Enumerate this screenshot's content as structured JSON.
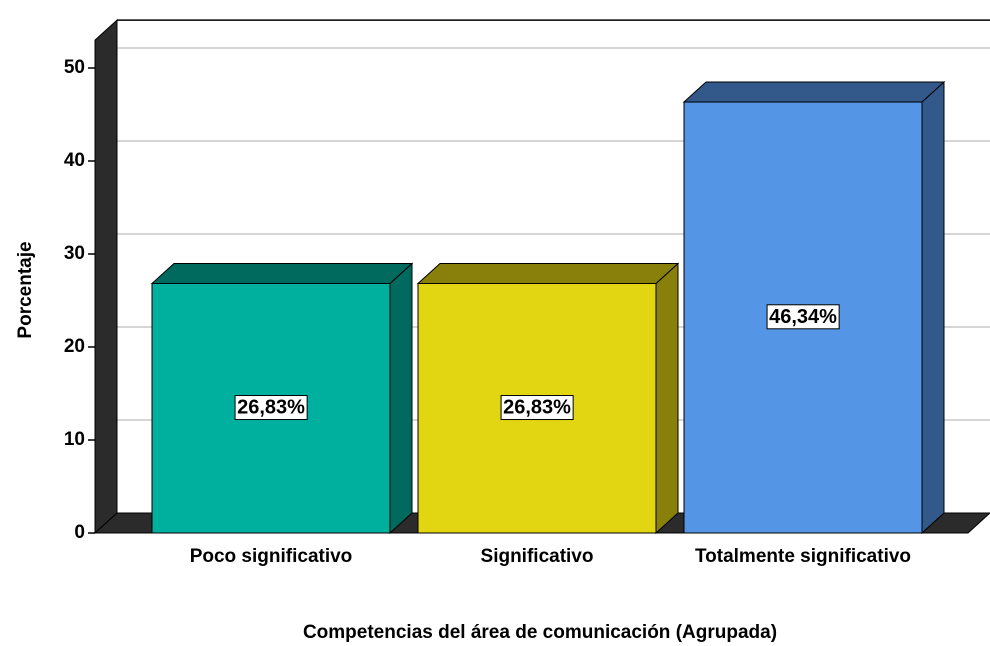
{
  "chart_data": {
    "type": "bar",
    "categories": [
      "Poco significativo",
      "Significativo",
      "Totalmente significativo"
    ],
    "values": [
      26.83,
      26.83,
      46.34
    ],
    "value_labels": [
      "26,83%",
      "26,83%",
      "46,34%"
    ],
    "colors": [
      "#00b09e",
      "#e2d511",
      "#5595e6"
    ],
    "y_label": "Porcentaje",
    "x_label": "Competencias del área de comunicación (Agrupada)",
    "ylim": [
      0,
      53
    ],
    "yticks": [
      0,
      10,
      20,
      30,
      40,
      50
    ],
    "grid": true
  }
}
